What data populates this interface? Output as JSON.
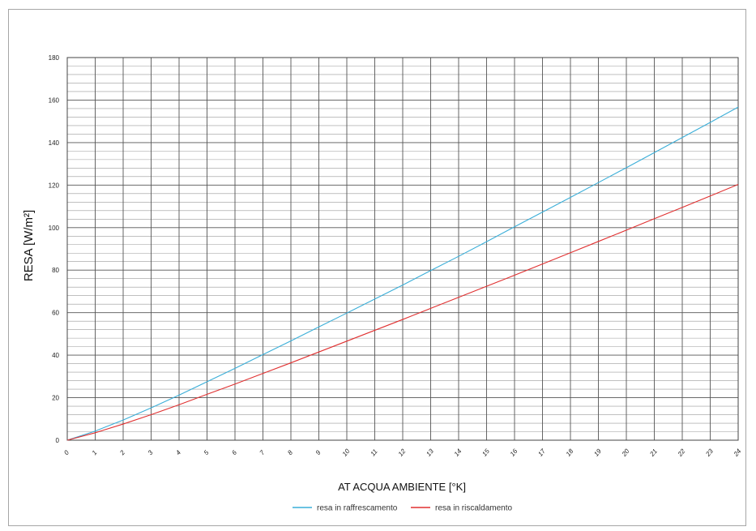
{
  "chart_data": {
    "type": "line",
    "title": "",
    "xlabel": "AT ACQUA AMBIENTE [°K]",
    "ylabel": "RESA [W/m²]",
    "xlim": [
      0,
      24
    ],
    "ylim": [
      0,
      180
    ],
    "x_ticks": [
      "0",
      "1",
      "2",
      "3",
      "4",
      "5",
      "6",
      "7",
      "8",
      "9",
      "10",
      "11",
      "12",
      "13",
      "14",
      "15",
      "16",
      "17",
      "18",
      "19",
      "20",
      "21",
      "22",
      "23",
      "24"
    ],
    "y_ticks": [
      "0",
      "20",
      "40",
      "60",
      "80",
      "100",
      "120",
      "140",
      "160",
      "180"
    ],
    "grid": true,
    "legend_position": "bottom",
    "x": [
      0,
      1,
      2,
      3,
      4,
      5,
      6,
      7,
      8,
      9,
      10,
      11,
      12,
      13,
      14,
      15,
      16,
      17,
      18,
      19,
      20,
      21,
      22,
      23,
      24
    ],
    "series": [
      {
        "name": "resa in raffrescamento",
        "color": "#3aaed8",
        "values": [
          0,
          4.3,
          9.5,
          15.2,
          21.2,
          27.5,
          33.8,
          40.3,
          46.7,
          53.3,
          59.8,
          66.4,
          73.0,
          79.8,
          86.5,
          93.4,
          100.4,
          107.3,
          114.2,
          121.2,
          128.2,
          135.3,
          142.4,
          149.5,
          156.7
        ]
      },
      {
        "name": "resa in riscaldamento",
        "color": "#e03030",
        "values": [
          0,
          3.5,
          7.6,
          12.0,
          16.7,
          21.6,
          26.4,
          31.4,
          36.4,
          41.5,
          46.6,
          51.7,
          56.8,
          62.0,
          67.2,
          72.4,
          77.6,
          82.9,
          88.2,
          93.5,
          98.8,
          104.2,
          109.5,
          114.9,
          120.3
        ]
      }
    ]
  }
}
